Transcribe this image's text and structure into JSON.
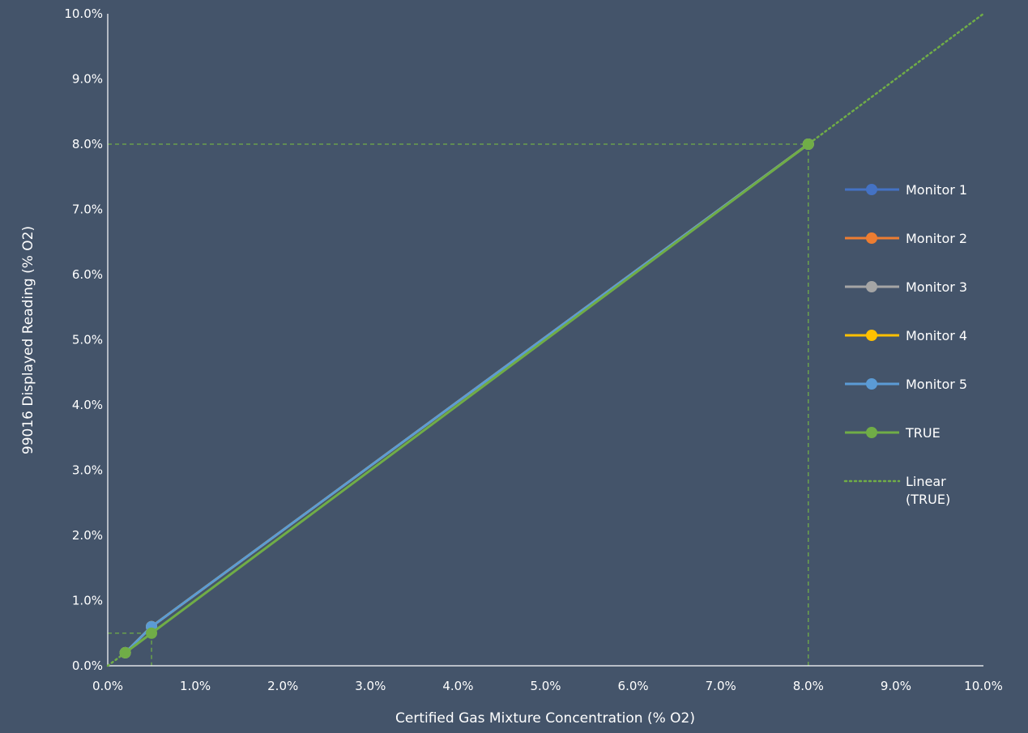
{
  "chart_data": {
    "type": "line",
    "title": "",
    "xlabel": "Certified Gas Mixture Concentration (% O2)",
    "ylabel": "99016 Displayed Reading (% O2)",
    "xlim": [
      0,
      10
    ],
    "ylim": [
      0,
      10
    ],
    "x_ticks": [
      "0.0%",
      "1.0%",
      "2.0%",
      "3.0%",
      "4.0%",
      "5.0%",
      "6.0%",
      "7.0%",
      "8.0%",
      "9.0%",
      "10.0%"
    ],
    "y_ticks": [
      "0.0%",
      "1.0%",
      "2.0%",
      "3.0%",
      "4.0%",
      "5.0%",
      "6.0%",
      "7.0%",
      "8.0%",
      "9.0%",
      "10.0%"
    ],
    "x": [
      0.2,
      0.5,
      8.0
    ],
    "series": [
      {
        "name": "Monitor 1",
        "color": "#4472c4",
        "values": [
          0.2,
          0.6,
          8.0
        ]
      },
      {
        "name": "Monitor 2",
        "color": "#ed7d31",
        "values": [
          0.2,
          0.6,
          8.0
        ]
      },
      {
        "name": "Monitor 3",
        "color": "#a5a5a5",
        "values": [
          0.2,
          0.6,
          8.0
        ]
      },
      {
        "name": "Monitor 4",
        "color": "#ffc000",
        "values": [
          0.2,
          0.6,
          8.0
        ]
      },
      {
        "name": "Monitor 5",
        "color": "#5b9bd5",
        "values": [
          0.2,
          0.6,
          8.0
        ]
      },
      {
        "name": "TRUE",
        "color": "#70ad47",
        "values": [
          0.2,
          0.5,
          8.0
        ]
      }
    ],
    "trendline": {
      "name": "Linear (TRUE)",
      "color": "#70ad47",
      "style": "dotted",
      "x": [
        0,
        10
      ],
      "values": [
        0,
        10
      ]
    },
    "reference_lines": [
      {
        "x": 0.5,
        "y": 0.5
      },
      {
        "x": 8.0,
        "y": 8.0
      }
    ],
    "grid": false,
    "legend_position": "right"
  }
}
